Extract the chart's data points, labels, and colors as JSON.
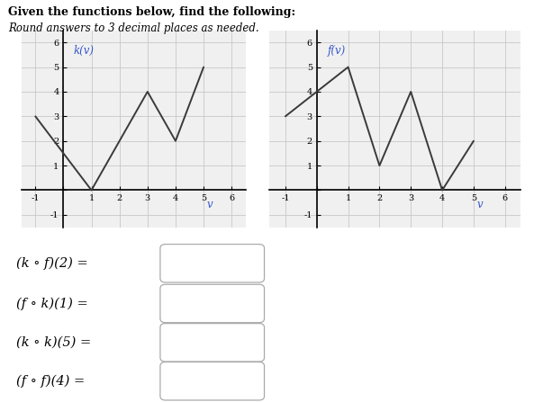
{
  "title_bold": "Given the functions below, find the following:",
  "title_italic": "Round answers to 3 decimal places as needed.",
  "k_points": [
    [
      -1,
      3
    ],
    [
      1,
      0
    ],
    [
      3,
      4
    ],
    [
      4,
      2
    ],
    [
      5,
      5
    ]
  ],
  "f_points": [
    [
      -1,
      3
    ],
    [
      1,
      5
    ],
    [
      2,
      1
    ],
    [
      3,
      4
    ],
    [
      4,
      0
    ],
    [
      5,
      2
    ]
  ],
  "k_label": "k(v)",
  "f_label": "f(v)",
  "v_label": "v",
  "line_color": "#3a3a3a",
  "label_color": "#3355cc",
  "grid_color": "#c8c8c8",
  "graph_bg": "#f0f0f0",
  "bg_color": "#ffffff",
  "eq_labels": [
    "(k ∘ f)(2) =",
    "(f ∘ k)(1) =",
    "(k ∘ k)(5) =",
    "(f ∘ f)(4) ="
  ]
}
